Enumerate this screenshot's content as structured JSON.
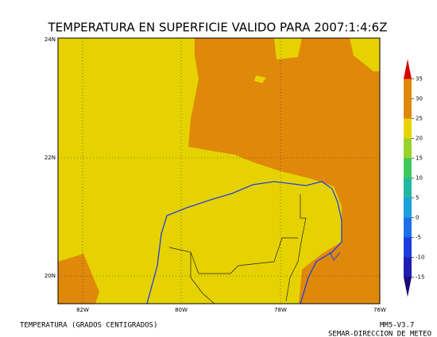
{
  "title": "TEMPERATURA EN SUPERFICIE VALIDO PARA 2007:1:4:6Z",
  "map": {
    "lat_labels": [
      "24N",
      "22N",
      "20N"
    ],
    "lon_labels": [
      "82W",
      "80W",
      "78W",
      "76W"
    ]
  },
  "colorbar": {
    "ticks": [
      35,
      30,
      25,
      20,
      15,
      10,
      5,
      0,
      -5,
      -10,
      -15
    ],
    "colors": [
      "#d80000",
      "#e0880a",
      "#e0880a",
      "#e6d200",
      "#9ad22a",
      "#3cc85a",
      "#20b8a0",
      "#1ea0dc",
      "#1e6ee6",
      "#1e3cdc",
      "#1e1eb4",
      "#1a0a78"
    ]
  },
  "footer": {
    "left": "TEMPERATURA (GRADOS CENTIGRADOS)",
    "right_1": "MM5-V3.7",
    "right_2": "SEMAR-DIRECCION DE METEO"
  }
}
